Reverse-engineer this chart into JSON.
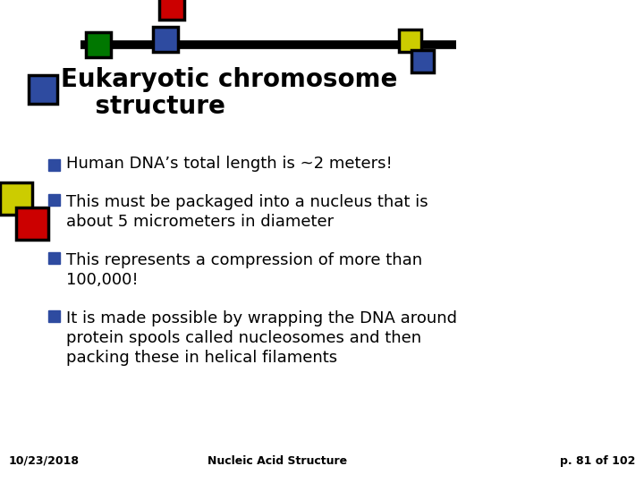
{
  "title_line1": "Eukaryotic chromosome",
  "title_line2": "    structure",
  "bullets": [
    "Human DNA’s total length is ~2 meters!",
    "This must be packaged into a nucleus that is\nabout 5 micrometers in diameter",
    "This represents a compression of more than\n100,000!",
    "It is made possible by wrapping the DNA around\nprotein spools called nucleosomes and then\npacking these in helical filaments"
  ],
  "footer_left": "10/23/2018",
  "footer_center": "Nucleic Acid Structure",
  "footer_right": "p. 81 of 102",
  "bg_color": "#ffffff",
  "text_color": "#000000",
  "bullet_marker_color": "#2E4BA0",
  "title_color": "#000000",
  "colors": {
    "red": "#CC0000",
    "blue": "#2E4BA0",
    "green": "#007700",
    "yellow": "#CCCC00",
    "black": "#000000"
  },
  "line_color": "#000000"
}
